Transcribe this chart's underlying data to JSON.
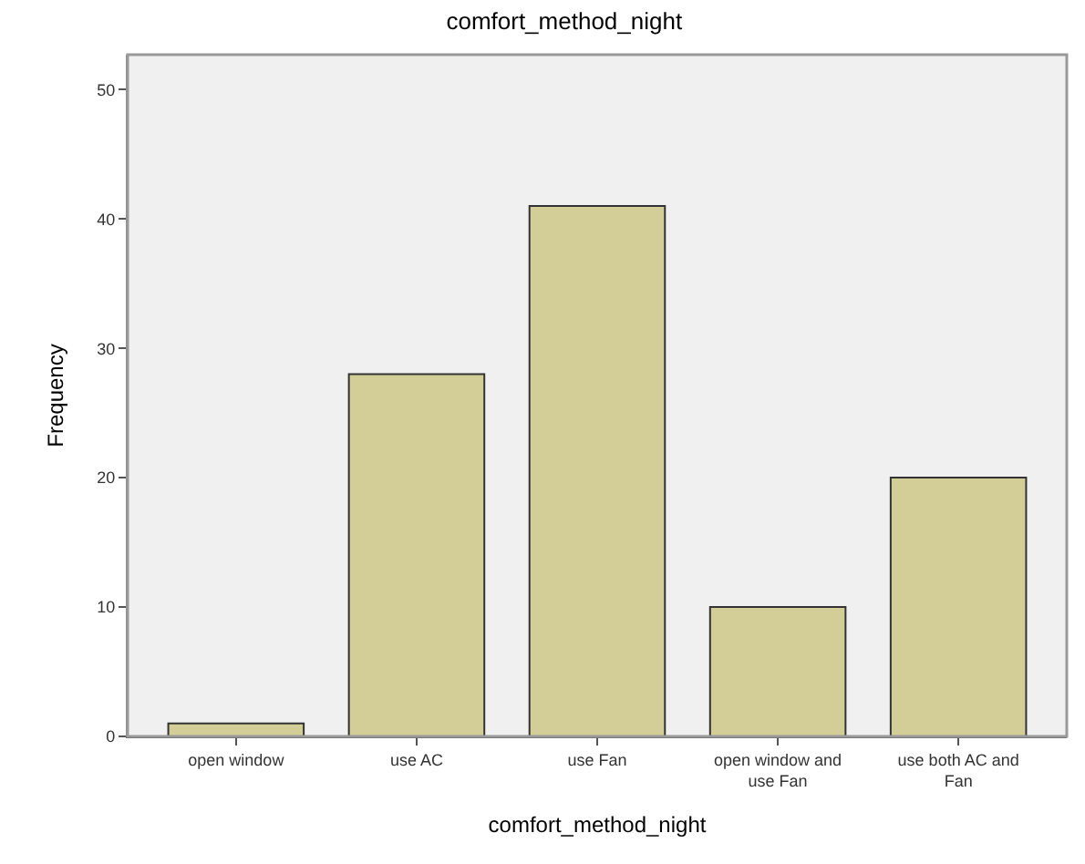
{
  "chart_data": {
    "type": "bar",
    "title": "comfort_method_night",
    "xlabel": "comfort_method_night",
    "ylabel": "Frequency",
    "categories": [
      "open window",
      "use AC",
      "use Fan",
      "open window and use Fan",
      "use both AC and Fan"
    ],
    "values": [
      1,
      28,
      41,
      10,
      20
    ],
    "color": "#d3ce97",
    "ylim": [
      0,
      52.7
    ],
    "yticks": [
      0,
      10,
      20,
      30,
      40,
      50
    ],
    "grid": false,
    "legend": false
  }
}
